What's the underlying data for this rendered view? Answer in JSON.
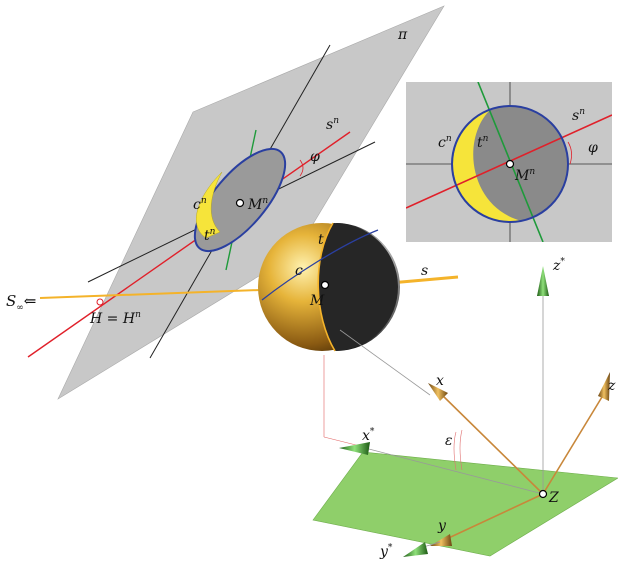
{
  "figure": {
    "labels": {
      "pi": "π",
      "s_n_main": "s",
      "s_n_main_sup": "n",
      "phi_main": "φ",
      "c_n_main": "c",
      "c_n_main_sup": "n",
      "M_n_main": "M",
      "M_n_main_sup": "n",
      "t_n_main": "t",
      "t_n_main_sup": "n",
      "t_sphere": "t",
      "c_sphere": "c",
      "M_sphere": "M",
      "s_sphere": "s",
      "S_inf": "S",
      "S_inf_sub": "∞",
      "arrow_left": "⇐",
      "H_eq": "H = H",
      "H_eq_sup": "n",
      "s_n_inset": "s",
      "s_n_inset_sup": "n",
      "phi_inset": "φ",
      "c_n_inset": "c",
      "c_n_inset_sup": "n",
      "t_n_inset": "t",
      "t_n_inset_sup": "n",
      "M_n_inset": "M",
      "M_n_inset_sup": "n",
      "z_star": "z",
      "z_star_sup": "*",
      "x_axis": "x",
      "z_axis": "z",
      "x_star": "x",
      "x_star_sup": "*",
      "epsilon": "ε",
      "Z_point": "Z",
      "y_axis": "y",
      "y_star": "y",
      "y_star_sup": "*"
    },
    "colors": {
      "plane_gray": "#c8c8c8",
      "ground_green": "#8fcf6a",
      "red_line": "#e0202a",
      "orange_ray": "#f4b32a",
      "green_line": "#1e9a3a",
      "blue_ellipse": "#2a3fa0",
      "yellow_fill": "#f6e43a",
      "axis_brown": "#b07a25",
      "axis_green": "#2f8a2a"
    }
  }
}
